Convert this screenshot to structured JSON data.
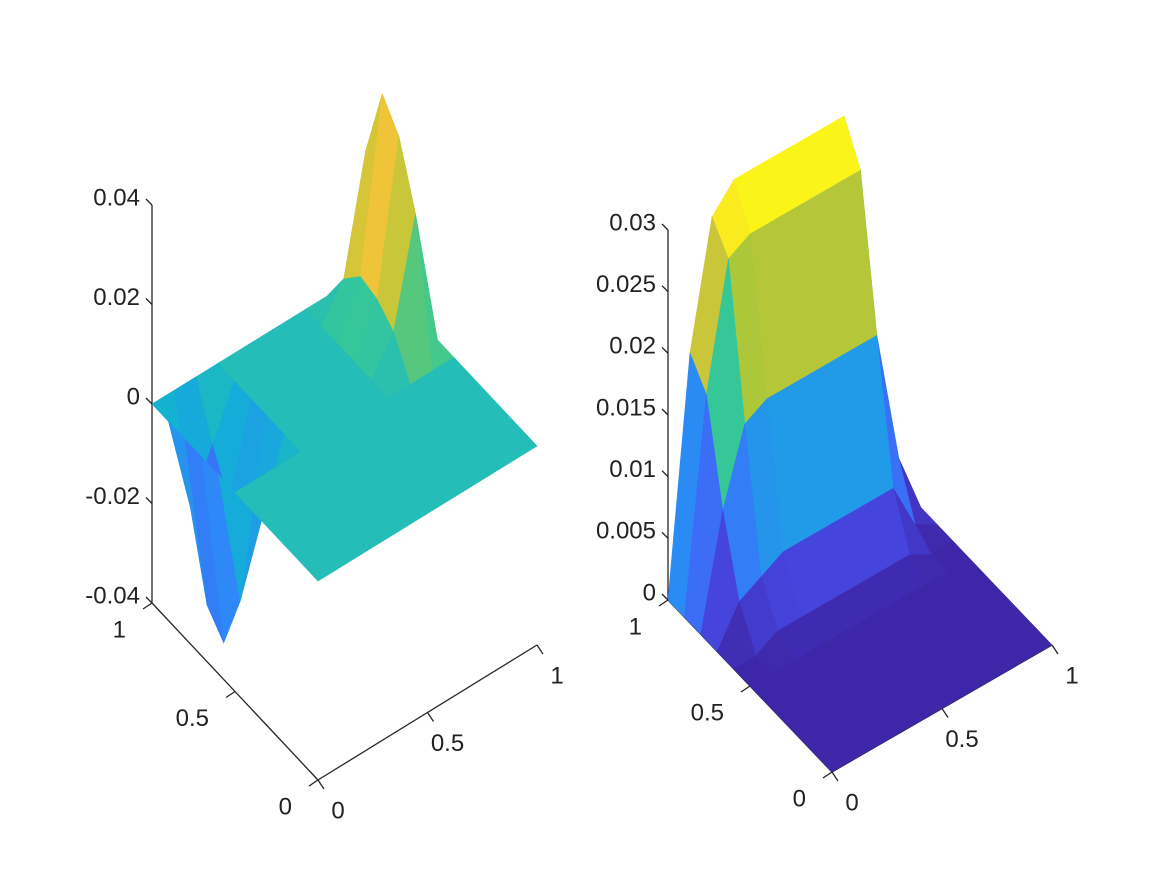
{
  "chart_data": [
    {
      "type": "surface",
      "x": [
        0,
        0.1,
        0.2,
        0.3,
        0.4,
        0.5,
        0.6,
        0.7,
        0.8,
        0.9,
        1
      ],
      "y": [
        0,
        0.1,
        0.2,
        0.3,
        0.4,
        0.5,
        0.6,
        0.7,
        0.8,
        0.9,
        1
      ],
      "z": [
        [
          0,
          0,
          0,
          0,
          0,
          0,
          0,
          0,
          0,
          0,
          0
        ],
        [
          0,
          0,
          0,
          0,
          0,
          0,
          0,
          0,
          0,
          0,
          0
        ],
        [
          0,
          0,
          0,
          0,
          0,
          0,
          0,
          0,
          0,
          0,
          0
        ],
        [
          0,
          0,
          0,
          0,
          0,
          0,
          0,
          0,
          0,
          0,
          0
        ],
        [
          0,
          0,
          0,
          0,
          0,
          0,
          0,
          0,
          0,
          0,
          0
        ],
        [
          0,
          0,
          0,
          0,
          0,
          0,
          0,
          0,
          0,
          0,
          0
        ],
        [
          0,
          -0.028,
          -0.014,
          0,
          0,
          0,
          0,
          0,
          0.007,
          0.028,
          0
        ],
        [
          0,
          -0.04,
          -0.02,
          0,
          0,
          0,
          0,
          0,
          0.01,
          0.04,
          0
        ],
        [
          0,
          -0.036,
          -0.018,
          0,
          0,
          0,
          0,
          0,
          0.011,
          0.045,
          0
        ],
        [
          0,
          -0.02,
          -0.01,
          0,
          0,
          0,
          0,
          0,
          0.007,
          0.03,
          0
        ],
        [
          0,
          0,
          0,
          0,
          0,
          0,
          0,
          0,
          0,
          0,
          0
        ]
      ],
      "xlim": [
        0,
        1
      ],
      "ylim": [
        0,
        1
      ],
      "zlim": [
        -0.04,
        0.04
      ],
      "xticks": [
        0,
        0.5,
        1
      ],
      "yticks": [
        0,
        0.5,
        1
      ],
      "zticks": [
        -0.04,
        -0.02,
        0,
        0.02,
        0.04
      ]
    },
    {
      "type": "surface",
      "x": [
        0,
        0.1,
        0.2,
        0.3,
        0.4,
        0.5,
        0.6,
        0.7,
        0.8,
        0.9,
        1
      ],
      "y": [
        0,
        0.1,
        0.2,
        0.3,
        0.4,
        0.5,
        0.6,
        0.7,
        0.8,
        0.9,
        1
      ],
      "z": [
        [
          0,
          0,
          0,
          0,
          0,
          0,
          0,
          0,
          0,
          0,
          0
        ],
        [
          0,
          0,
          0,
          0,
          0,
          0,
          0,
          0,
          0,
          0,
          0
        ],
        [
          0,
          0,
          0,
          0,
          0,
          0,
          0,
          0,
          0,
          0,
          0
        ],
        [
          0,
          0,
          0,
          0,
          0,
          0,
          0,
          0,
          0,
          0,
          0
        ],
        [
          0,
          0,
          0,
          0,
          0,
          0,
          0,
          0,
          0,
          0,
          0
        ],
        [
          0,
          0,
          0,
          0,
          0,
          0,
          0,
          0,
          0,
          0,
          0
        ],
        [
          0,
          0,
          0.001,
          0.001,
          0.001,
          0.001,
          0.001,
          0.001,
          0.001,
          0,
          0
        ],
        [
          0,
          0.003,
          0.004,
          0.005,
          0.005,
          0.005,
          0.005,
          0.005,
          0.005,
          0.001,
          0
        ],
        [
          0,
          0.009,
          0.015,
          0.016,
          0.016,
          0.016,
          0.016,
          0.016,
          0.016,
          0.005,
          0
        ],
        [
          0,
          0.017,
          0.027,
          0.028,
          0.028,
          0.028,
          0.028,
          0.028,
          0.028,
          0.008,
          0
        ],
        [
          0,
          0.019,
          0.029,
          0.031,
          0.031,
          0.031,
          0.031,
          0.031,
          0.031,
          0.009,
          0
        ]
      ],
      "xlim": [
        0,
        1
      ],
      "ylim": [
        0,
        1
      ],
      "zlim": [
        0,
        0.03
      ],
      "xticks": [
        0,
        0.5,
        1
      ],
      "yticks": [
        0,
        0.5,
        1
      ],
      "zticks": [
        0,
        0.005,
        0.01,
        0.015,
        0.02,
        0.025,
        0.03
      ]
    }
  ]
}
